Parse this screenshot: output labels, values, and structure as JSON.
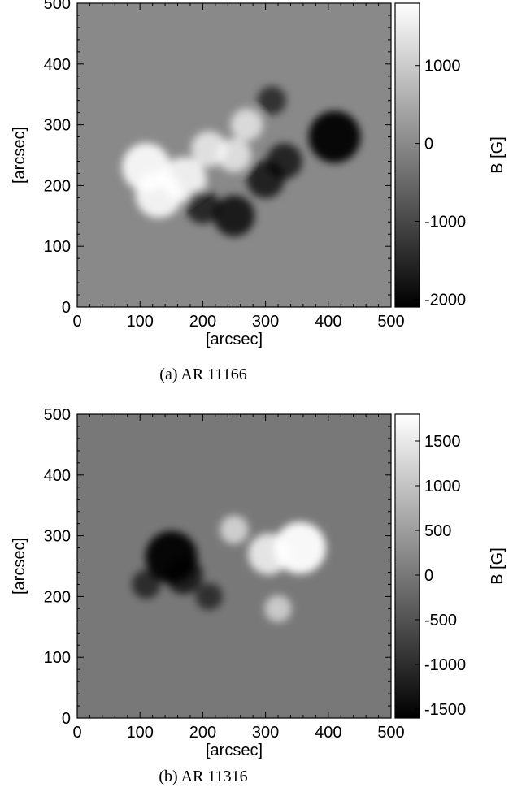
{
  "chart_data": [
    {
      "type": "heatmap",
      "caption": "(a)  AR 11166",
      "xlabel": "[arcsec]",
      "ylabel": "[arcsec]",
      "xlim": [
        0,
        500
      ],
      "ylim": [
        0,
        500
      ],
      "x_ticks": [
        "0",
        "100",
        "200",
        "300",
        "400",
        "500"
      ],
      "y_ticks": [
        "0",
        "100",
        "200",
        "300",
        "400",
        "500"
      ],
      "colorbar": {
        "label": "B [G]",
        "range": [
          -2100,
          1800
        ],
        "ticks": [
          "1000",
          "0",
          "-1000",
          "-2000"
        ],
        "tick_values": [
          1000,
          0,
          -1000,
          -2000
        ],
        "colormap": "grayscale"
      },
      "features": [
        {
          "polarity": "positive",
          "x": 110,
          "y": 230,
          "strength": 0.9
        },
        {
          "polarity": "positive",
          "x": 130,
          "y": 185,
          "strength": 0.85
        },
        {
          "polarity": "positive",
          "x": 170,
          "y": 210,
          "strength": 0.8
        },
        {
          "polarity": "positive",
          "x": 210,
          "y": 260,
          "strength": 0.55
        },
        {
          "polarity": "positive",
          "x": 250,
          "y": 250,
          "strength": 0.5
        },
        {
          "polarity": "positive",
          "x": 270,
          "y": 300,
          "strength": 0.45
        },
        {
          "polarity": "negative",
          "x": 410,
          "y": 280,
          "strength": 1.0
        },
        {
          "polarity": "negative",
          "x": 250,
          "y": 150,
          "strength": 0.7
        },
        {
          "polarity": "negative",
          "x": 300,
          "y": 210,
          "strength": 0.6
        },
        {
          "polarity": "negative",
          "x": 330,
          "y": 240,
          "strength": 0.55
        },
        {
          "polarity": "negative",
          "x": 200,
          "y": 165,
          "strength": 0.5
        },
        {
          "polarity": "negative",
          "x": 310,
          "y": 340,
          "strength": 0.35
        }
      ]
    },
    {
      "type": "heatmap",
      "caption": "(b)  AR 11316",
      "xlabel": "[arcsec]",
      "ylabel": "[arcsec]",
      "xlim": [
        0,
        500
      ],
      "ylim": [
        0,
        500
      ],
      "x_ticks": [
        "0",
        "100",
        "200",
        "300",
        "400",
        "500"
      ],
      "y_ticks": [
        "0",
        "100",
        "200",
        "300",
        "400",
        "500"
      ],
      "colorbar": {
        "label": "B [G]",
        "range": [
          -1600,
          1800
        ],
        "ticks": [
          "1500",
          "1000",
          "500",
          "0",
          "-500",
          "-1000",
          "-1500"
        ],
        "tick_values": [
          1500,
          1000,
          500,
          0,
          -500,
          -1000,
          -1500
        ],
        "colormap": "grayscale"
      },
      "features": [
        {
          "polarity": "negative",
          "x": 150,
          "y": 265,
          "strength": 1.0
        },
        {
          "polarity": "negative",
          "x": 170,
          "y": 235,
          "strength": 0.6
        },
        {
          "polarity": "negative",
          "x": 110,
          "y": 220,
          "strength": 0.35
        },
        {
          "polarity": "negative",
          "x": 210,
          "y": 200,
          "strength": 0.3
        },
        {
          "polarity": "positive",
          "x": 355,
          "y": 280,
          "strength": 1.0
        },
        {
          "polarity": "positive",
          "x": 305,
          "y": 270,
          "strength": 0.7
        },
        {
          "polarity": "positive",
          "x": 250,
          "y": 310,
          "strength": 0.35
        },
        {
          "polarity": "positive",
          "x": 320,
          "y": 180,
          "strength": 0.3
        }
      ]
    }
  ]
}
